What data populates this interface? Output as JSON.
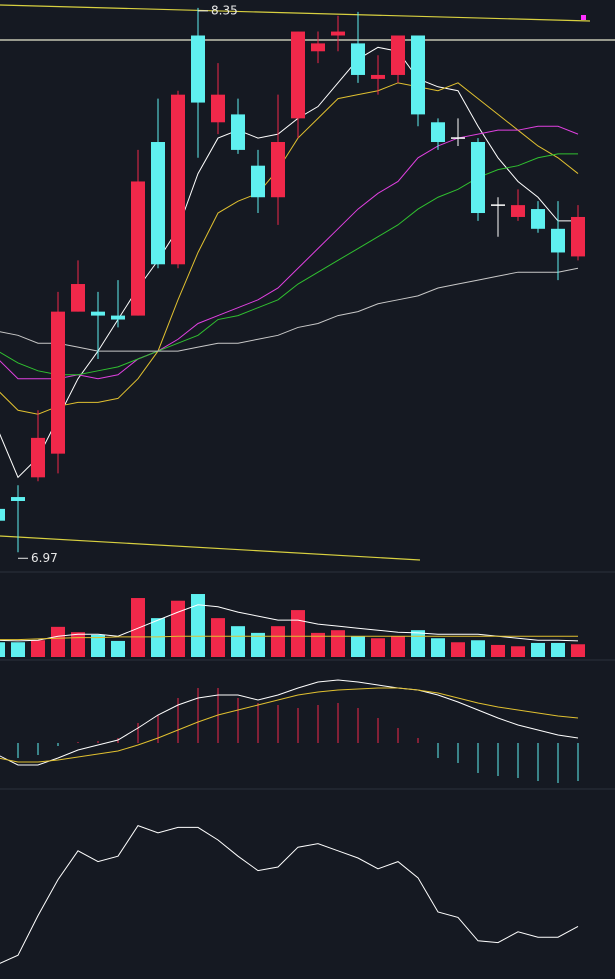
{
  "chart_data": [
    {
      "type": "candlestick",
      "up_color": "#f0284a",
      "down_color": "#5ff0f0",
      "ylim": [
        6.92,
        8.37
      ],
      "open": [
        7.08,
        7.11,
        7.16,
        7.22,
        7.58,
        7.58,
        7.57,
        7.57,
        8.01,
        7.7,
        8.28,
        8.06,
        8.08,
        7.95,
        7.87,
        8.07,
        8.24,
        8.28,
        8.26,
        8.17,
        8.18,
        8.28,
        8.06,
        8.02,
        8.01,
        7.85,
        7.82,
        7.84,
        7.79,
        7.72
      ],
      "high": [
        7.09,
        7.14,
        7.33,
        7.63,
        7.71,
        7.63,
        7.66,
        7.99,
        8.12,
        8.14,
        8.35,
        8.21,
        8.12,
        7.99,
        8.13,
        8.29,
        8.29,
        8.33,
        8.34,
        8.23,
        8.28,
        8.28,
        8.07,
        8.07,
        8.02,
        7.87,
        7.89,
        7.86,
        7.86,
        7.85
      ],
      "low": [
        7.04,
        6.97,
        7.15,
        7.17,
        7.58,
        7.46,
        7.54,
        7.57,
        7.69,
        7.69,
        7.97,
        8.03,
        7.98,
        7.83,
        7.8,
        8.02,
        8.21,
        8.24,
        8.16,
        8.13,
        8.16,
        8.05,
        7.99,
        8.0,
        7.81,
        7.77,
        7.81,
        7.78,
        7.66,
        7.71
      ],
      "close": [
        7.05,
        7.1,
        7.26,
        7.58,
        7.65,
        7.57,
        7.56,
        7.91,
        7.7,
        8.13,
        8.11,
        8.13,
        7.99,
        7.87,
        8.01,
        8.29,
        8.26,
        8.29,
        8.18,
        8.18,
        8.28,
        8.08,
        8.01,
        8.02,
        7.83,
        7.85,
        7.85,
        7.79,
        7.73,
        7.82
      ],
      "series": [
        {
          "color": "#ffffff",
          "values": [
            7.28,
            7.16,
            7.21,
            7.31,
            7.41,
            7.48,
            7.56,
            7.64,
            7.71,
            7.79,
            7.93,
            8.02,
            8.04,
            8.02,
            8.03,
            8.07,
            8.1,
            8.16,
            8.22,
            8.25,
            8.24,
            8.17,
            8.15,
            8.14,
            8.05,
            7.97,
            7.91,
            7.87,
            7.81,
            7.81
          ]
        },
        {
          "color": "#e0c030",
          "values": [
            7.38,
            7.33,
            7.32,
            7.34,
            7.35,
            7.35,
            7.36,
            7.41,
            7.48,
            7.61,
            7.73,
            7.83,
            7.86,
            7.88,
            7.94,
            8.02,
            8.07,
            8.12,
            8.13,
            8.14,
            8.16,
            8.15,
            8.14,
            8.16,
            8.12,
            8.08,
            8.04,
            8.0,
            7.97,
            7.93
          ]
        },
        {
          "color": "#e040e0",
          "values": [
            7.46,
            7.41,
            7.41,
            7.41,
            7.42,
            7.41,
            7.42,
            7.46,
            7.48,
            7.51,
            7.55,
            7.57,
            7.59,
            7.61,
            7.64,
            7.69,
            7.74,
            7.79,
            7.84,
            7.88,
            7.91,
            7.97,
            8.0,
            8.02,
            8.03,
            8.04,
            8.04,
            8.05,
            8.05,
            8.03
          ]
        },
        {
          "color": "#30c030",
          "values": [
            7.48,
            7.45,
            7.43,
            7.42,
            7.42,
            7.43,
            7.44,
            7.46,
            7.48,
            7.5,
            7.52,
            7.56,
            7.57,
            7.59,
            7.61,
            7.65,
            7.68,
            7.71,
            7.74,
            7.77,
            7.8,
            7.84,
            7.87,
            7.89,
            7.92,
            7.94,
            7.95,
            7.97,
            7.98,
            7.98
          ]
        },
        {
          "color": "#c8c8c8",
          "values": [
            7.53,
            7.52,
            7.5,
            7.5,
            7.49,
            7.48,
            7.48,
            7.48,
            7.48,
            7.48,
            7.49,
            7.5,
            7.5,
            7.51,
            7.52,
            7.54,
            7.55,
            7.57,
            7.58,
            7.6,
            7.61,
            7.62,
            7.64,
            7.65,
            7.66,
            7.67,
            7.68,
            7.68,
            7.68,
            7.69
          ]
        }
      ],
      "annotations": [
        8.35,
        6.97
      ]
    },
    {
      "type": "bar",
      "ylim": [
        0,
        100
      ],
      "values": [
        22,
        22,
        25,
        45,
        37,
        33,
        24,
        88,
        58,
        84,
        94,
        58,
        46,
        36,
        46,
        70,
        36,
        40,
        31,
        28,
        31,
        40,
        28,
        22,
        25,
        18,
        16,
        21,
        21,
        19
      ],
      "series": [
        {
          "color": "#ffffff",
          "values": [
            25,
            24,
            25,
            31,
            34,
            34,
            31,
            43,
            55,
            67,
            78,
            75,
            67,
            61,
            55,
            55,
            49,
            46,
            43,
            40,
            37,
            36,
            34,
            34,
            34,
            31,
            28,
            25,
            25,
            24
          ]
        },
        {
          "color": "#e0c030",
          "values": [
            26,
            26,
            27,
            28,
            29,
            29,
            30,
            30,
            30,
            31,
            31,
            31,
            31,
            31,
            31,
            31,
            31,
            31,
            31,
            31,
            31,
            31,
            31,
            31,
            31,
            31,
            31,
            31,
            31,
            31
          ]
        }
      ]
    },
    {
      "type": "macd",
      "up_color": "#f0284a",
      "down_color": "#5ff0f0",
      "ylim": [
        -0.1,
        0.15
      ],
      "values": [
        -0.016,
        -0.03,
        -0.024,
        -0.006,
        0.002,
        0.004,
        0.01,
        0.04,
        0.056,
        0.09,
        0.11,
        0.11,
        0.09,
        0.08,
        0.076,
        0.07,
        0.076,
        0.08,
        0.07,
        0.05,
        0.03,
        0.01,
        -0.03,
        -0.04,
        -0.06,
        -0.066,
        -0.07,
        -0.076,
        -0.08,
        -0.076
      ],
      "series": [
        {
          "color": "#ffffff",
          "values": [
            -0.024,
            -0.044,
            -0.044,
            -0.03,
            -0.014,
            -0.004,
            0.006,
            0.03,
            0.056,
            0.076,
            0.09,
            0.096,
            0.096,
            0.086,
            0.096,
            0.11,
            0.122,
            0.126,
            0.122,
            0.116,
            0.11,
            0.106,
            0.096,
            0.082,
            0.066,
            0.05,
            0.036,
            0.026,
            0.016,
            0.01
          ]
        },
        {
          "color": "#e0c030",
          "values": [
            -0.03,
            -0.038,
            -0.038,
            -0.034,
            -0.028,
            -0.022,
            -0.016,
            -0.004,
            0.01,
            0.026,
            0.042,
            0.056,
            0.066,
            0.076,
            0.086,
            0.096,
            0.102,
            0.106,
            0.108,
            0.11,
            0.11,
            0.106,
            0.1,
            0.09,
            0.08,
            0.072,
            0.066,
            0.06,
            0.054,
            0.05
          ]
        }
      ]
    },
    {
      "type": "line",
      "ylim": [
        0,
        100
      ],
      "series": [
        {
          "color": "#ffffff",
          "values": [
            6,
            11,
            33,
            53,
            69,
            63,
            66,
            83,
            79,
            82,
            82,
            75,
            66,
            58,
            60,
            71,
            73,
            69,
            65,
            59,
            63,
            54,
            35,
            32,
            19,
            18,
            24,
            21,
            21,
            27
          ]
        }
      ]
    }
  ]
}
